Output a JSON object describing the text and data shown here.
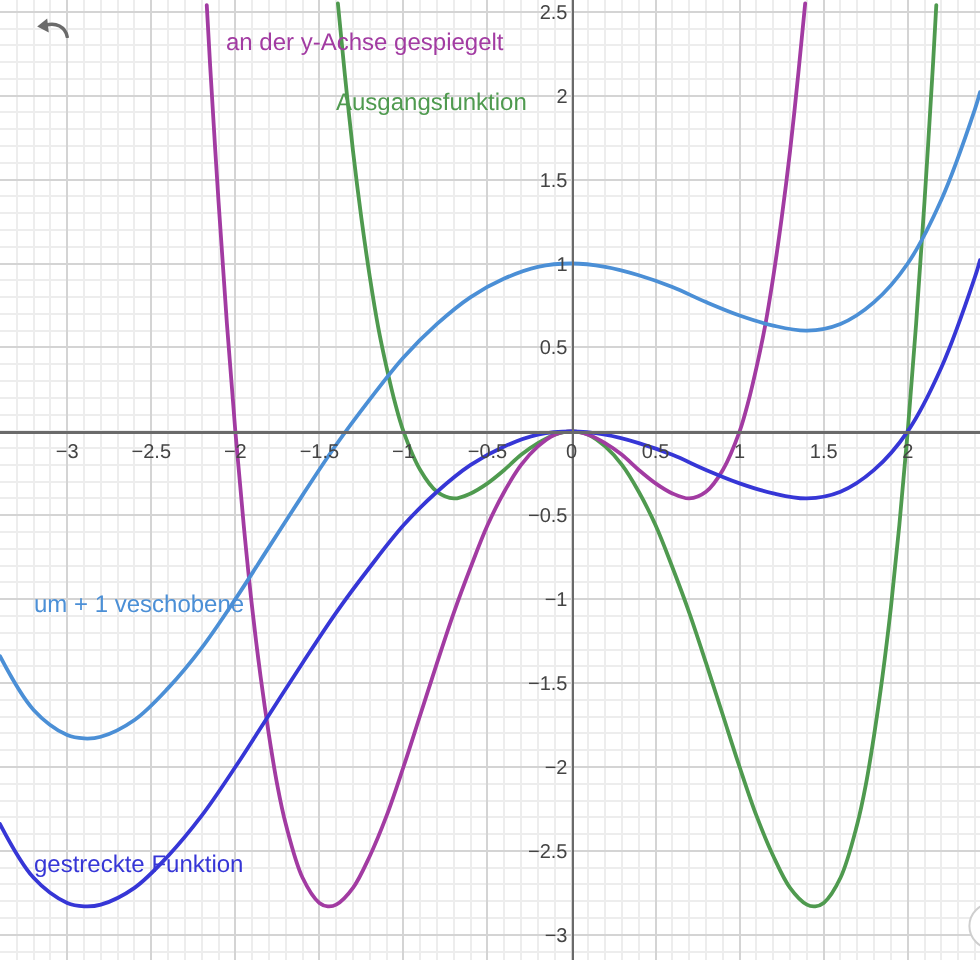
{
  "chart_data": {
    "type": "line",
    "xlim": [
      -3.4,
      2.43
    ],
    "ylim": [
      -3.15,
      2.57
    ],
    "xticks": [
      -3,
      -2.5,
      -2,
      -1.5,
      -1,
      -0.5,
      0,
      0.5,
      1,
      1.5,
      2
    ],
    "yticks": [
      -3,
      -2.5,
      -2,
      -1.5,
      -1,
      -0.5,
      0.5,
      1,
      1.5,
      2,
      2.5
    ],
    "grid": true,
    "series": [
      {
        "name": "Ausgangsfunktion",
        "color": "#4f9a4f",
        "x": [
          -1.39,
          -1.35,
          -1.3,
          -1.25,
          -1.2,
          -1.15,
          -1.1,
          -1.05,
          -1,
          -0.9,
          -0.8,
          -0.7,
          -0.6,
          -0.5,
          -0.4,
          -0.3,
          -0.2,
          -0.1,
          0,
          0.1,
          0.2,
          0.3,
          0.4,
          0.5,
          0.6,
          0.7,
          0.8,
          0.9,
          1,
          1.1,
          1.2,
          1.3,
          1.4,
          1.45,
          1.5,
          1.6,
          1.7,
          1.75,
          1.8,
          1.85,
          1.9,
          1.95,
          2,
          2.05,
          2.1,
          2.15,
          2.17
        ],
        "values": [
          2.55,
          2.14,
          1.67,
          1.27,
          0.92,
          0.62,
          0.38,
          0.17,
          0,
          -0.23,
          -0.36,
          -0.4,
          -0.37,
          -0.31,
          -0.23,
          -0.14,
          -0.07,
          -0.02,
          0,
          -0.02,
          -0.09,
          -0.2,
          -0.36,
          -0.56,
          -0.81,
          -1.08,
          -1.38,
          -1.69,
          -2,
          -2.29,
          -2.53,
          -2.72,
          -2.82,
          -2.83,
          -2.81,
          -2.66,
          -2.34,
          -2.11,
          -1.81,
          -1.46,
          -1.05,
          -0.56,
          0,
          0.64,
          1.37,
          2.18,
          2.54
        ]
      },
      {
        "name": "an der y-Achse gespiegelt",
        "color": "#a23ba2",
        "x": [
          -2.17,
          -2.15,
          -2.1,
          -2.05,
          -2,
          -1.95,
          -1.9,
          -1.85,
          -1.8,
          -1.75,
          -1.7,
          -1.6,
          -1.5,
          -1.45,
          -1.4,
          -1.3,
          -1.2,
          -1.1,
          -1,
          -0.9,
          -0.8,
          -0.7,
          -0.6,
          -0.5,
          -0.4,
          -0.3,
          -0.2,
          -0.1,
          0,
          0.1,
          0.2,
          0.3,
          0.4,
          0.5,
          0.6,
          0.7,
          0.8,
          0.9,
          1,
          1.05,
          1.1,
          1.15,
          1.2,
          1.25,
          1.3,
          1.35,
          1.39
        ],
        "values": [
          2.54,
          2.18,
          1.37,
          0.64,
          0,
          -0.56,
          -1.05,
          -1.46,
          -1.81,
          -2.11,
          -2.34,
          -2.66,
          -2.81,
          -2.83,
          -2.82,
          -2.72,
          -2.53,
          -2.29,
          -2,
          -1.69,
          -1.38,
          -1.08,
          -0.81,
          -0.56,
          -0.36,
          -0.2,
          -0.09,
          -0.02,
          0,
          -0.02,
          -0.07,
          -0.14,
          -0.23,
          -0.31,
          -0.37,
          -0.4,
          -0.36,
          -0.23,
          0,
          0.17,
          0.38,
          0.62,
          0.92,
          1.27,
          1.67,
          2.14,
          2.55
        ]
      },
      {
        "name": "um + 1 veschobene",
        "color": "#4b8fd6",
        "x": [
          -3.4,
          -3.2,
          -3,
          -2.9,
          -2.8,
          -2.6,
          -2.4,
          -2.2,
          -2,
          -1.8,
          -1.6,
          -1.4,
          -1.2,
          -1,
          -0.8,
          -0.6,
          -0.4,
          -0.2,
          0,
          0.2,
          0.4,
          0.6,
          0.8,
          1,
          1.2,
          1.4,
          1.6,
          1.8,
          2,
          2.2,
          2.4,
          2.43
        ],
        "values": [
          -1.34,
          -1.66,
          -1.81,
          -1.83,
          -1.82,
          -1.72,
          -1.53,
          -1.29,
          -1,
          -0.69,
          -0.38,
          -0.08,
          0.19,
          0.44,
          0.64,
          0.8,
          0.91,
          0.98,
          1,
          0.98,
          0.93,
          0.86,
          0.77,
          0.69,
          0.63,
          0.6,
          0.64,
          0.77,
          1,
          1.38,
          1.92,
          2.02
        ]
      },
      {
        "name": "gestreckte Funktion",
        "color": "#3636d6",
        "x": [
          -3.4,
          -3.2,
          -3,
          -2.9,
          -2.8,
          -2.6,
          -2.4,
          -2.2,
          -2,
          -1.8,
          -1.6,
          -1.4,
          -1.2,
          -1,
          -0.8,
          -0.6,
          -0.4,
          -0.2,
          0,
          0.2,
          0.4,
          0.6,
          0.8,
          1,
          1.2,
          1.4,
          1.6,
          1.8,
          2,
          2.2,
          2.4,
          2.43
        ],
        "values": [
          -2.34,
          -2.66,
          -2.81,
          -2.83,
          -2.82,
          -2.72,
          -2.53,
          -2.29,
          -2,
          -1.69,
          -1.38,
          -1.08,
          -0.81,
          -0.56,
          -0.36,
          -0.2,
          -0.09,
          -0.02,
          0,
          -0.02,
          -0.07,
          -0.14,
          -0.23,
          -0.31,
          -0.37,
          -0.4,
          -0.36,
          -0.23,
          0,
          0.38,
          0.92,
          1.02
        ]
      }
    ]
  }
}
